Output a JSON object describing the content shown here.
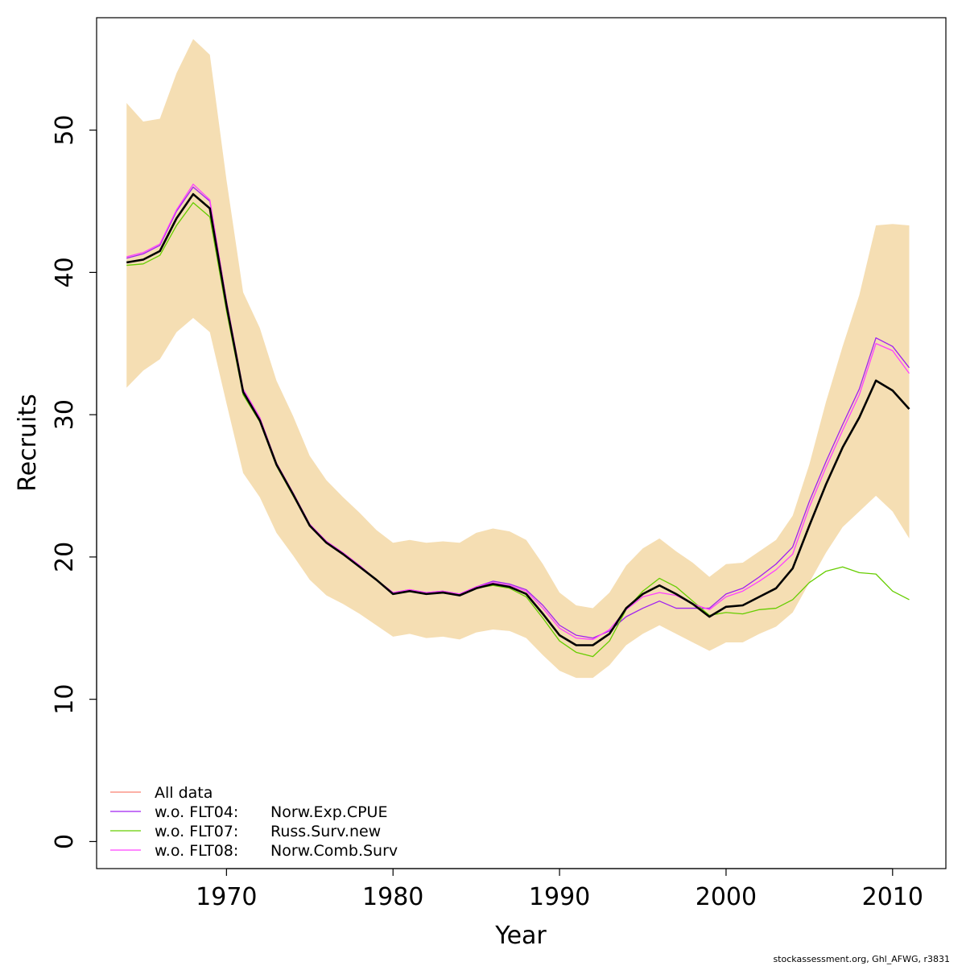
{
  "chart_data": {
    "type": "line",
    "xlabel": "Year",
    "ylabel": "Recruits",
    "xlim": [
      1962.2,
      2013.2
    ],
    "ylim": [
      -1.9,
      57.9
    ],
    "xticks": [
      1970,
      1980,
      1990,
      2000,
      2010
    ],
    "yticks": [
      0,
      10,
      20,
      30,
      40,
      50
    ],
    "grid": false,
    "legend_position": "bottom-left",
    "x": [
      1964,
      1965,
      1966,
      1967,
      1968,
      1969,
      1970,
      1971,
      1972,
      1973,
      1974,
      1975,
      1976,
      1977,
      1978,
      1979,
      1980,
      1981,
      1982,
      1983,
      1984,
      1985,
      1986,
      1987,
      1988,
      1989,
      1990,
      1991,
      1992,
      1993,
      1994,
      1995,
      1996,
      1997,
      1998,
      1999,
      2000,
      2001,
      2002,
      2003,
      2004,
      2005,
      2006,
      2007,
      2008,
      2009,
      2010,
      2011
    ],
    "band": {
      "color": "#F5DEB3",
      "upper": [
        51.9,
        50.6,
        50.8,
        54.0,
        56.4,
        55.3,
        46.5,
        38.6,
        36.1,
        32.4,
        29.9,
        27.1,
        25.4,
        24.2,
        23.1,
        21.9,
        21.0,
        21.2,
        21.0,
        21.1,
        21.0,
        21.7,
        22.0,
        21.8,
        21.2,
        19.5,
        17.5,
        16.6,
        16.4,
        17.5,
        19.4,
        20.6,
        21.3,
        20.4,
        19.6,
        18.6,
        19.5,
        19.6,
        20.4,
        21.2,
        22.9,
        26.5,
        30.9,
        34.8,
        38.4,
        43.3,
        43.4,
        43.3
      ],
      "lower": [
        31.9,
        33.1,
        33.9,
        35.8,
        36.8,
        35.8,
        30.8,
        25.9,
        24.2,
        21.7,
        20.1,
        18.4,
        17.3,
        16.7,
        16.0,
        15.2,
        14.4,
        14.6,
        14.3,
        14.4,
        14.2,
        14.7,
        14.9,
        14.8,
        14.3,
        13.1,
        12.0,
        11.5,
        11.5,
        12.4,
        13.8,
        14.6,
        15.2,
        14.6,
        14.0,
        13.4,
        14.0,
        14.0,
        14.6,
        15.1,
        16.1,
        18.2,
        20.3,
        22.1,
        23.2,
        24.3,
        23.2,
        21.3
      ]
    },
    "main_series": {
      "name": "All data",
      "color": "#000000",
      "values": [
        40.7,
        40.9,
        41.5,
        43.8,
        45.5,
        44.5,
        37.7,
        31.6,
        29.6,
        26.5,
        24.4,
        22.2,
        21.0,
        20.2,
        19.3,
        18.4,
        17.4,
        17.6,
        17.4,
        17.5,
        17.3,
        17.8,
        18.1,
        17.9,
        17.4,
        16.0,
        14.5,
        13.8,
        13.8,
        14.6,
        16.4,
        17.4,
        18.0,
        17.4,
        16.7,
        15.8,
        16.5,
        16.6,
        17.2,
        17.8,
        19.2,
        22.2,
        25.1,
        27.7,
        29.8,
        32.4,
        31.7,
        30.4
      ]
    },
    "series": [
      {
        "name": "w.o. FLT04:      Norw.Exp.CPUE",
        "color": "#A020F0",
        "values": [
          41.0,
          41.3,
          41.9,
          44.3,
          46.0,
          45.0,
          38.0,
          31.8,
          29.8,
          26.6,
          24.5,
          22.3,
          21.1,
          20.3,
          19.4,
          18.4,
          17.5,
          17.7,
          17.5,
          17.6,
          17.4,
          17.9,
          18.3,
          18.1,
          17.7,
          16.6,
          15.2,
          14.5,
          14.3,
          14.8,
          15.8,
          16.4,
          16.9,
          16.4,
          16.4,
          16.4,
          17.4,
          17.8,
          18.6,
          19.5,
          20.7,
          23.9,
          26.7,
          29.3,
          31.8,
          35.4,
          34.8,
          33.3
        ]
      },
      {
        "name": "w.o. FLT07:      Russ.Surv.new",
        "color": "#66CD00",
        "values": [
          40.5,
          40.6,
          41.2,
          43.3,
          44.9,
          43.9,
          37.3,
          31.4,
          29.5,
          26.4,
          24.3,
          22.2,
          21.0,
          20.2,
          19.3,
          18.4,
          17.4,
          17.6,
          17.4,
          17.5,
          17.3,
          17.8,
          18.0,
          17.8,
          17.2,
          15.7,
          14.1,
          13.3,
          13.0,
          14.1,
          16.3,
          17.6,
          18.5,
          17.9,
          16.9,
          15.9,
          16.1,
          16.0,
          16.3,
          16.4,
          17.0,
          18.2,
          19.0,
          19.3,
          18.9,
          18.8,
          17.6,
          17.0
        ]
      },
      {
        "name": "w.o. FLT08:      Norw.Comb.Surv",
        "color": "#FF40FF",
        "values": [
          41.1,
          41.4,
          42.0,
          44.4,
          46.2,
          45.1,
          38.0,
          31.8,
          29.8,
          26.6,
          24.5,
          22.3,
          21.1,
          20.3,
          19.4,
          18.4,
          17.5,
          17.7,
          17.5,
          17.6,
          17.4,
          17.9,
          18.2,
          18.0,
          17.6,
          16.4,
          15.0,
          14.3,
          14.2,
          14.9,
          16.3,
          17.2,
          17.5,
          17.3,
          16.7,
          16.3,
          17.2,
          17.6,
          18.3,
          19.1,
          20.2,
          23.5,
          26.3,
          28.9,
          31.4,
          35.0,
          34.5,
          32.9
        ]
      }
    ],
    "legend": [
      {
        "label": "All data",
        "color": "#FA8072",
        "tab_label": ""
      },
      {
        "label": "w.o. FLT04:",
        "color": "#A020F0",
        "tab_label": "Norw.Exp.CPUE"
      },
      {
        "label": "w.o. FLT07:",
        "color": "#66CD00",
        "tab_label": "Russ.Surv.new"
      },
      {
        "label": "w.o. FLT08:",
        "color": "#FF40FF",
        "tab_label": "Norw.Comb.Surv"
      }
    ]
  },
  "credit": "stockassessment.org, Ghl_AFWG, r3831"
}
